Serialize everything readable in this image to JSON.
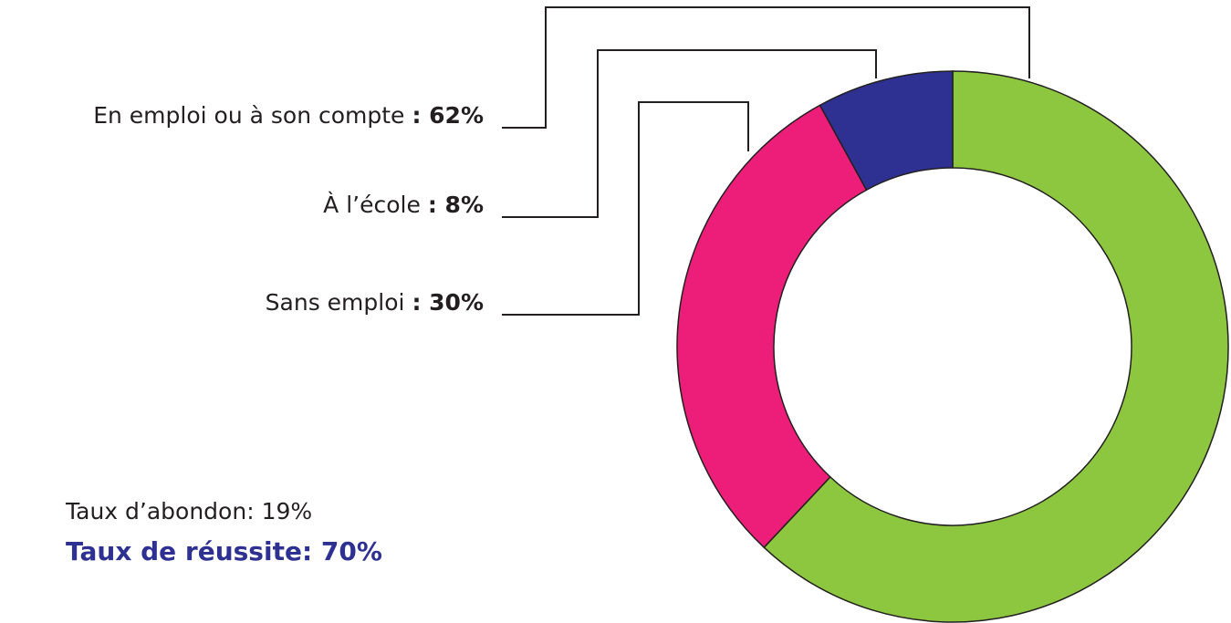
{
  "chart_data": {
    "type": "donut",
    "categories": [
      "En emploi ou à son compte",
      "Sans emploi",
      "À l’école"
    ],
    "values": [
      62,
      30,
      8
    ],
    "value_labels": [
      ": 62%",
      ": 30%",
      ": 8%"
    ],
    "colors": [
      "#8dc63f",
      "#ed1e79",
      "#2e3192"
    ],
    "annotations": [
      "Taux d’abondon: 19%",
      "Taux de réussite: 70%"
    ]
  }
}
